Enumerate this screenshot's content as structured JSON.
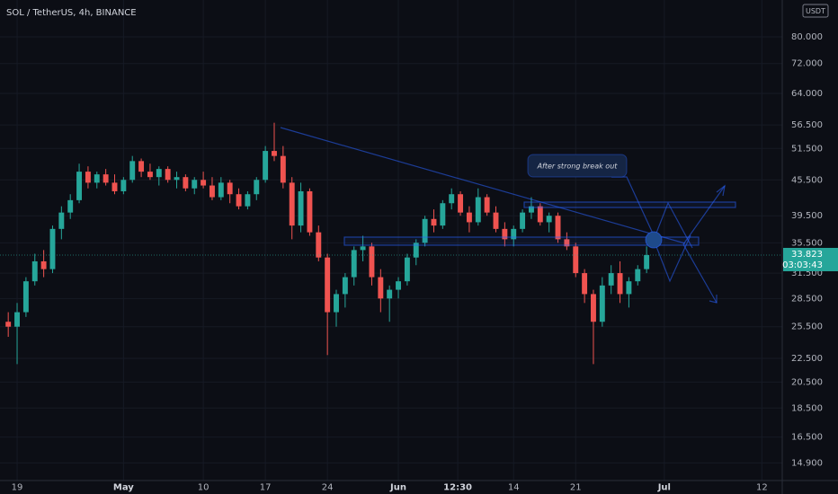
{
  "chart_data": {
    "type": "candlestick",
    "title": "SOL / TetherUS, 4h, BINANCE",
    "currency": "USDT",
    "annotation": "After strong break out",
    "countdown": "03:03:43",
    "last_price": 33.823,
    "log_scale": true,
    "up_color": "#26a69a",
    "down_color": "#ef5350",
    "xlim": [
      -1.93,
      86.3
    ],
    "xticks": [
      {
        "value": 0,
        "label": "19"
      },
      {
        "value": 12,
        "label": "May"
      },
      {
        "value": 21,
        "label": "10"
      },
      {
        "value": 28,
        "label": "17"
      },
      {
        "value": 35,
        "label": "24"
      },
      {
        "value": 43,
        "label": "Jun"
      },
      {
        "value": 49.7,
        "label": "12:30"
      },
      {
        "value": 56,
        "label": "14"
      },
      {
        "value": 63,
        "label": "21"
      },
      {
        "value": 73,
        "label": "Jul"
      },
      {
        "value": 84,
        "label": "12"
      }
    ],
    "ylim": [
      13.9,
      92.5
    ],
    "yticks": [
      {
        "value": 14.9,
        "label": "14.900"
      },
      {
        "value": 16.5,
        "label": "16.500"
      },
      {
        "value": 18.5,
        "label": "18.500"
      },
      {
        "value": 20.5,
        "label": "20.500"
      },
      {
        "value": 22.5,
        "label": "22.500"
      },
      {
        "value": 25.5,
        "label": "25.500"
      },
      {
        "value": 28.5,
        "label": "28.500"
      },
      {
        "value": 31.5,
        "label": "31.500"
      },
      {
        "value": 35.5,
        "label": "35.500"
      },
      {
        "value": 39.5,
        "label": "39.500"
      },
      {
        "value": 45.5,
        "label": "45.500"
      },
      {
        "value": 51.5,
        "label": "51.500"
      },
      {
        "value": 56.5,
        "label": "56.500"
      },
      {
        "value": 64,
        "label": "64.000"
      },
      {
        "value": 72,
        "label": "72.000"
      },
      {
        "value": 80,
        "label": "80.000"
      }
    ],
    "x": [
      -1,
      0,
      1,
      2,
      3,
      4,
      5,
      6,
      7,
      8,
      9,
      10,
      11,
      12,
      13,
      14,
      15,
      16,
      17,
      18,
      19,
      20,
      21,
      22,
      23,
      24,
      25,
      26,
      27,
      28,
      29,
      30,
      31,
      32,
      33,
      34,
      35,
      36,
      37,
      38,
      39,
      40,
      41,
      42,
      43,
      44,
      45,
      46,
      47,
      48,
      49,
      50,
      51,
      52,
      53,
      54,
      55,
      56,
      57,
      58,
      59,
      60,
      61,
      62,
      63,
      64,
      65,
      66,
      67,
      68,
      69,
      70,
      71
    ],
    "open": [
      26,
      25.5,
      27,
      30.5,
      33,
      32,
      37.5,
      40,
      42,
      47,
      45,
      46.5,
      45,
      43.5,
      45.5,
      49,
      47,
      46,
      47.5,
      45.5,
      46,
      44,
      45.5,
      44.5,
      42.5,
      45,
      43,
      41,
      43,
      45.5,
      51,
      50,
      45,
      38,
      43.5,
      37,
      33.5,
      27,
      29,
      31,
      34.5,
      35,
      31,
      28.5,
      29.5,
      30.5,
      33.5,
      35.5,
      39,
      38,
      41.5,
      43,
      40,
      38.5,
      42.5,
      40,
      37.5,
      36,
      37.5,
      40,
      41,
      38.5,
      39.5,
      36,
      35,
      31.5,
      29,
      26,
      30,
      31.5,
      29,
      30.5,
      32
    ],
    "high": [
      27,
      28,
      31,
      34,
      34.5,
      38,
      41,
      43,
      48.5,
      48,
      47,
      47.5,
      46.5,
      46,
      50,
      49.5,
      48.5,
      48,
      48,
      47,
      46.5,
      46,
      47,
      46,
      46,
      45.5,
      44,
      43.5,
      46,
      52,
      57,
      52,
      46,
      45,
      44,
      38,
      34,
      29.5,
      31.5,
      35,
      36.5,
      35.5,
      32,
      30,
      31,
      34,
      36,
      39.5,
      40.5,
      42,
      44,
      43.5,
      41,
      44,
      43,
      41,
      38.5,
      38,
      40.5,
      42.5,
      41.5,
      40,
      40,
      37,
      35.5,
      32,
      29.5,
      31,
      32.5,
      33,
      31,
      32.5,
      35
    ],
    "low": [
      24.5,
      22,
      26.5,
      30,
      31,
      31.5,
      36,
      39,
      41.5,
      44,
      44,
      44.5,
      43,
      43,
      45,
      46,
      45.5,
      44.5,
      45,
      44,
      43.5,
      43,
      44,
      42,
      42,
      41.5,
      40.5,
      40.5,
      42,
      45,
      49,
      44,
      36,
      37,
      36.5,
      33,
      22.8,
      25.5,
      27.5,
      30,
      33,
      30,
      27,
      26,
      28.5,
      30,
      32.5,
      35,
      37,
      37.5,
      40.5,
      39.5,
      37,
      38,
      39.5,
      37,
      35,
      35,
      37,
      39,
      38,
      37,
      35.5,
      34.5,
      31,
      28,
      22,
      25.5,
      29,
      28,
      27.5,
      30,
      31.5
    ],
    "close": [
      25.5,
      27,
      30.5,
      33,
      32,
      37.5,
      40,
      42,
      47,
      45,
      46.5,
      45,
      43.5,
      45.5,
      49,
      47,
      46,
      47.5,
      45.5,
      46,
      44,
      45.5,
      44.5,
      42.5,
      45,
      43,
      41,
      43,
      45.5,
      51,
      50,
      45,
      38,
      43.5,
      37,
      33.5,
      27,
      29,
      31,
      34.5,
      35,
      31,
      28.5,
      29.5,
      30.5,
      33.5,
      35.5,
      39,
      38,
      41.5,
      43,
      40,
      38.5,
      42.5,
      40,
      37.5,
      36,
      37.5,
      40,
      41,
      38.5,
      39.5,
      36,
      35,
      31.5,
      29,
      26,
      30,
      31.5,
      29,
      30.5,
      32,
      33.823
    ]
  }
}
